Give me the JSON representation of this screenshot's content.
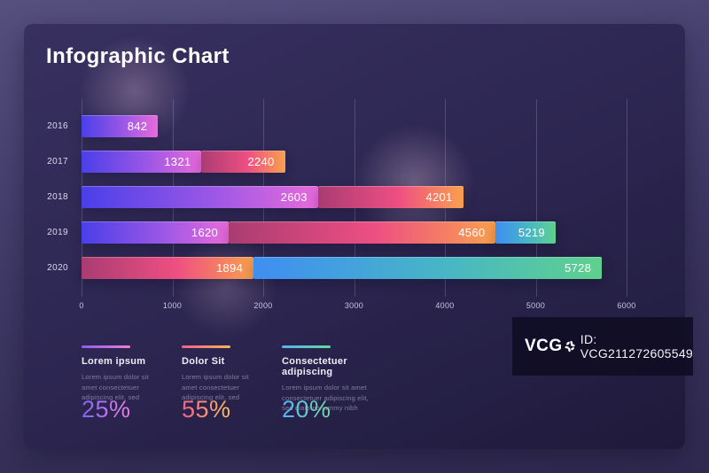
{
  "page": {
    "title": "Infographic Chart"
  },
  "watermark": {
    "logo_text": "VCG",
    "id_text": "ID: VCG211272605549"
  },
  "chart_data": {
    "type": "bar",
    "orientation": "horizontal",
    "title": "Infographic Chart",
    "categories": [
      "2016",
      "2017",
      "2018",
      "2019",
      "2020"
    ],
    "x_axis": {
      "min": 0,
      "max": 6000,
      "ticks": [
        0,
        1000,
        2000,
        3000,
        4000,
        5000,
        6000
      ]
    },
    "grid": "vertical gridlines on",
    "note": "each bar is made of overlapping gradient segments; segment values are axis endpoints",
    "rows": [
      {
        "year": "2016",
        "segments": [
          {
            "value": 842,
            "palette": "purple-pink"
          }
        ]
      },
      {
        "year": "2017",
        "segments": [
          {
            "value": 1321,
            "palette": "purple-pink"
          },
          {
            "value": 2240,
            "palette": "pink-orange"
          }
        ]
      },
      {
        "year": "2018",
        "segments": [
          {
            "value": 2603,
            "palette": "purple-pink"
          },
          {
            "value": 4201,
            "palette": "pink-orange"
          }
        ]
      },
      {
        "year": "2019",
        "segments": [
          {
            "value": 1620,
            "palette": "purple-pink"
          },
          {
            "value": 4560,
            "palette": "pink-orange"
          },
          {
            "value": 5219,
            "palette": "blue-green"
          }
        ]
      },
      {
        "year": "2020",
        "segments": [
          {
            "value": 1894,
            "palette": "pink-orange"
          },
          {
            "value": 5728,
            "palette": "blue-green"
          }
        ]
      }
    ]
  },
  "palettes": {
    "purple-pink": {
      "from": "#4a3fe8",
      "to": "#ea6ade"
    },
    "pink-orange": {
      "from": "#a93c72",
      "to": "#f9a04e"
    },
    "blue-green": {
      "from": "#3f8ef2",
      "to": "#5fd18d"
    }
  },
  "legend": [
    {
      "title": "Lorem ipsum",
      "body": "Lorem ipsum dolor sit amet consectetuer adipiscing elit, sed",
      "percent": "25%",
      "palette": "purple-pink"
    },
    {
      "title": "Dolor Sit",
      "body": "Lorem ipsum dolor sit amet consectetuer adipiscing elit, sed",
      "percent": "55%",
      "palette": "pink-orange"
    },
    {
      "title": "Consectetuer adipiscing",
      "body": "Lorem ipsum dolor sit amet consectetuer adipiscing elit, sed diam nonummy nibh",
      "percent": "20%",
      "palette": "blue-green"
    }
  ]
}
